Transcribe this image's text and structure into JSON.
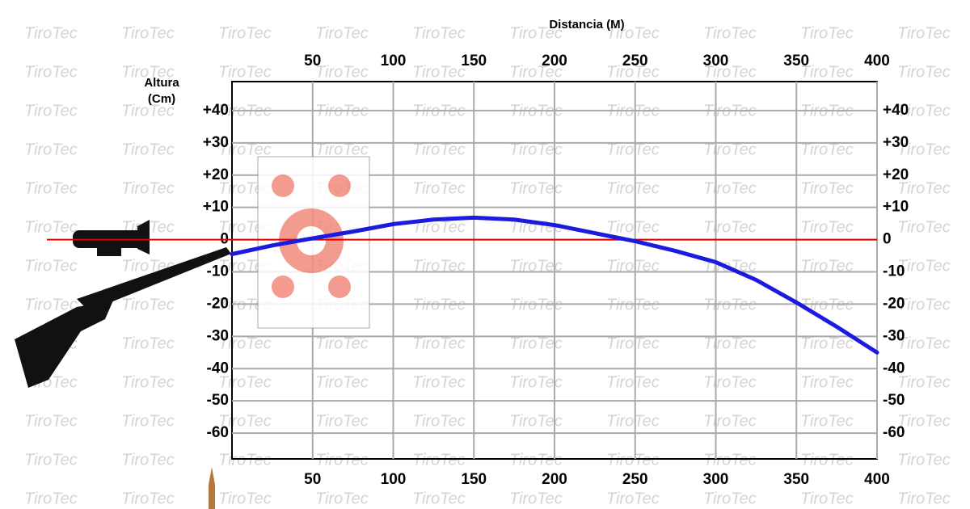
{
  "chart_data": {
    "type": "line",
    "watermark": "TiroTec",
    "x_label": "Distancia (M)",
    "y_label": "Altura (Cm)",
    "xlim": [
      0,
      400
    ],
    "xticks": [
      50,
      100,
      150,
      200,
      250,
      300,
      350,
      400
    ],
    "ylim": [
      -68,
      49
    ],
    "yticks": [
      {
        "value": 40,
        "label": "+40"
      },
      {
        "value": 30,
        "label": "+30"
      },
      {
        "value": 20,
        "label": "+20"
      },
      {
        "value": 10,
        "label": "+10"
      },
      0,
      -10,
      -20,
      -30,
      -40,
      -50,
      -60
    ],
    "grid": true,
    "reference_line": {
      "value": 0,
      "color": "#e00000"
    },
    "x": [
      0,
      25,
      50,
      75,
      100,
      125,
      150,
      175,
      200,
      225,
      250,
      275,
      300,
      325,
      350,
      375,
      400
    ],
    "series": [
      {
        "color": "#1a1ae0",
        "values": [
          -4.5,
          -1.8,
          0.4,
          2.5,
          4.8,
          6.2,
          6.8,
          6.2,
          4.5,
          2,
          -0.5,
          -3.5,
          -7,
          -12.5,
          -19.5,
          -27,
          -35
        ]
      }
    ]
  }
}
